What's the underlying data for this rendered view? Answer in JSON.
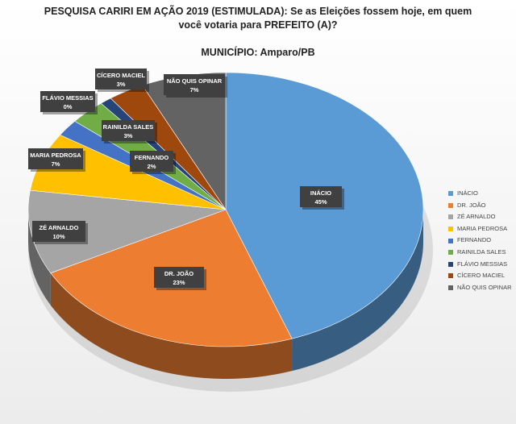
{
  "title_line1": "PESQUISA CARIRI EM AÇÃO 2019 (ESTIMULADA): Se as Eleições fossem hoje, em quem",
  "title_line2": "você votaria para PREFEITO (A)?",
  "subtitle": "MUNICÍPIO: Amparo/PB",
  "chart_data": {
    "type": "pie",
    "three_d": true,
    "legend_position": "right",
    "slices": [
      {
        "name": "INÁCIO",
        "value": 45,
        "label": "45%",
        "color": "#5b9bd5"
      },
      {
        "name": "DR. JOÃO",
        "value": 23,
        "label": "23%",
        "color": "#ed7d31"
      },
      {
        "name": "ZÉ ARNALDO",
        "value": 10,
        "label": "10%",
        "color": "#a5a5a5"
      },
      {
        "name": "MARIA PEDROSA",
        "value": 7,
        "label": "7%",
        "color": "#ffc000"
      },
      {
        "name": "FERNANDO",
        "value": 2,
        "label": "2%",
        "color": "#4472c4"
      },
      {
        "name": "RAINILDA SALES",
        "value": 3,
        "label": "3%",
        "color": "#70ad47"
      },
      {
        "name": "FLÁVIO MESSIAS",
        "value": 0,
        "label": "0%",
        "color": "#264478"
      },
      {
        "name": "CÍCERO MACIEL",
        "value": 3,
        "label": "3%",
        "color": "#9e480e"
      },
      {
        "name": "NÃO QUIS OPINAR",
        "value": 7,
        "label": "7%",
        "color": "#636363"
      }
    ]
  }
}
